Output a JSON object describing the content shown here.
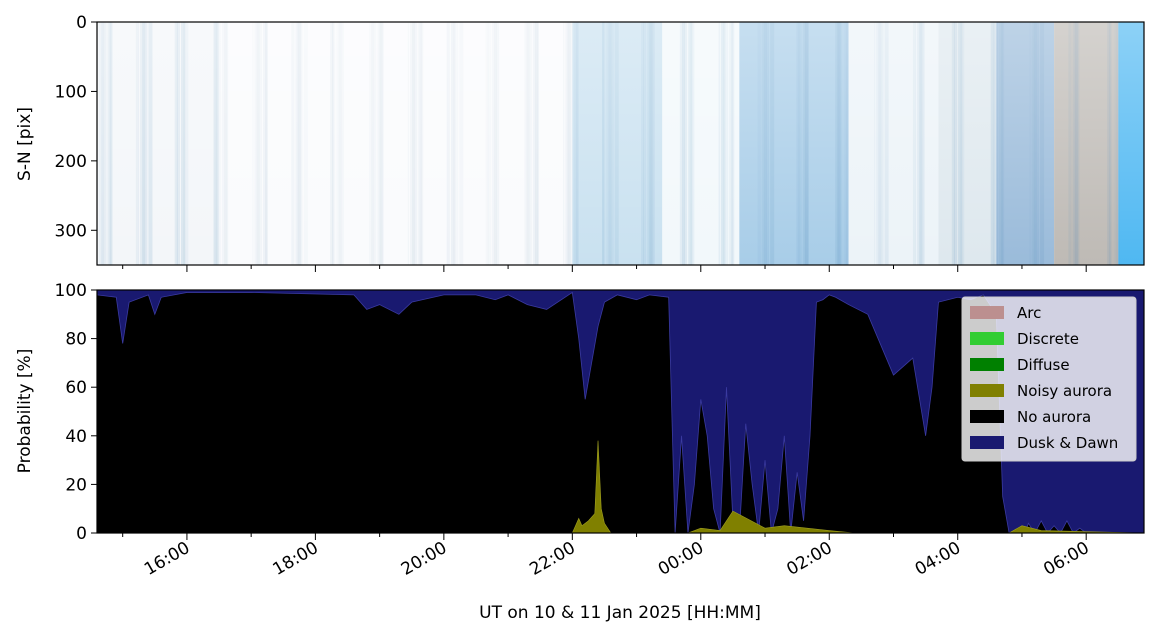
{
  "figure": {
    "xlabel": "UT on 10 & 11 Jan 2025 [HH:MM]",
    "x_tick_labels": [
      "16:00",
      "18:00",
      "20:00",
      "22:00",
      "00:00",
      "02:00",
      "04:00",
      "06:00"
    ]
  },
  "chart_data": [
    {
      "type": "heatmap",
      "ylabel": "S-N [pix]",
      "ylim": [
        350,
        0
      ],
      "yticks": [
        "0",
        "100",
        "200",
        "300"
      ],
      "xlim_hours": [
        14.6,
        30.9
      ],
      "description_bands": [
        {
          "from": 14.6,
          "to": 16.5,
          "color": "#eef2f6",
          "opacity": 0.7
        },
        {
          "from": 16.5,
          "to": 22.0,
          "color": "#f6f9fb",
          "opacity": 0.6
        },
        {
          "from": 22.0,
          "to": 23.4,
          "color": "#bcd9ec",
          "opacity": 0.8
        },
        {
          "from": 23.4,
          "to": 24.6,
          "color": "#eaf3f9",
          "opacity": 0.6
        },
        {
          "from": 24.6,
          "to": 26.3,
          "color": "#9fc8e6",
          "opacity": 0.9
        },
        {
          "from": 26.3,
          "to": 27.7,
          "color": "#e4eef5",
          "opacity": 0.7
        },
        {
          "from": 27.7,
          "to": 28.6,
          "color": "#d6e2ea",
          "opacity": 0.8
        },
        {
          "from": 28.6,
          "to": 29.5,
          "color": "#8fb4d6",
          "opacity": 0.9
        },
        {
          "from": 29.5,
          "to": 30.5,
          "color": "#b7b3ad",
          "opacity": 0.9
        },
        {
          "from": 30.5,
          "to": 30.9,
          "color": "#4fb8f2",
          "opacity": 1.0
        }
      ]
    },
    {
      "type": "area",
      "ylabel": "Probability [%]",
      "ylim": [
        0,
        100
      ],
      "yticks": [
        "0",
        "20",
        "40",
        "60",
        "80",
        "100"
      ],
      "xlim_hours": [
        14.6,
        30.9
      ],
      "legend_position": "top-right",
      "series": [
        {
          "name": "Arc",
          "color": "#bc8f8f"
        },
        {
          "name": "Discrete",
          "color": "#32cd32"
        },
        {
          "name": "Diffuse",
          "color": "#008000"
        },
        {
          "name": "Noisy aurora",
          "color": "#808000"
        },
        {
          "name": "No aurora",
          "color": "#000000"
        },
        {
          "name": "Dusk & Dawn",
          "color": "#191970"
        }
      ],
      "dusk_dawn_percent": {
        "x_hours": [
          14.6,
          14.9,
          15.0,
          15.1,
          15.4,
          15.5,
          15.6,
          16.0,
          17.0,
          18.6,
          18.8,
          19.0,
          19.3,
          19.5,
          20.0,
          20.5,
          20.8,
          21.0,
          21.3,
          21.6,
          22.0,
          22.1,
          22.2,
          22.3,
          22.4,
          22.5,
          22.7,
          23.0,
          23.2,
          23.5,
          23.6,
          23.7,
          23.8,
          23.9,
          24.0,
          24.1,
          24.2,
          24.3,
          24.4,
          24.5,
          24.6,
          24.7,
          24.8,
          24.9,
          25.0,
          25.1,
          25.2,
          25.3,
          25.4,
          25.5,
          25.6,
          25.7,
          25.8,
          25.9,
          26.0,
          26.1,
          26.3,
          26.6,
          27.0,
          27.3,
          27.5,
          27.6,
          27.7,
          28.0,
          28.2,
          28.4,
          28.6,
          28.7,
          28.8,
          28.9,
          29.0,
          29.05,
          29.1,
          29.2,
          29.3,
          29.4,
          29.5,
          29.6,
          29.7,
          29.8,
          29.9,
          30.0,
          30.1,
          30.2,
          30.3,
          30.4,
          30.5,
          30.6,
          30.65,
          30.9
        ],
        "values": [
          2,
          3,
          22,
          5,
          2,
          10,
          3,
          1,
          1,
          2,
          8,
          6,
          10,
          5,
          2,
          2,
          4,
          2,
          6,
          8,
          1,
          20,
          45,
          30,
          15,
          5,
          2,
          4,
          2,
          3,
          100,
          60,
          100,
          80,
          45,
          60,
          90,
          100,
          40,
          95,
          100,
          55,
          80,
          100,
          70,
          100,
          90,
          60,
          100,
          75,
          95,
          60,
          5,
          4,
          2,
          3,
          6,
          10,
          35,
          28,
          60,
          40,
          5,
          3,
          4,
          2,
          10,
          85,
          100,
          100,
          99,
          100,
          96,
          100,
          95,
          100,
          97,
          100,
          95,
          100,
          98,
          100,
          100,
          100,
          100,
          100,
          100,
          100,
          100,
          100
        ]
      },
      "noisy_aurora_percent": {
        "x_hours": [
          22.0,
          22.1,
          22.15,
          22.25,
          22.35,
          22.4,
          22.45,
          22.5,
          22.6,
          23.8,
          24.0,
          24.3,
          24.5,
          25.0,
          25.3,
          26.0,
          26.4,
          28.8,
          29.0,
          29.3,
          30.9
        ],
        "values": [
          0,
          6,
          3,
          5,
          8,
          38,
          10,
          4,
          0,
          0,
          2,
          1,
          9,
          2,
          3,
          1,
          0,
          0,
          3,
          1,
          0
        ]
      }
    }
  ]
}
